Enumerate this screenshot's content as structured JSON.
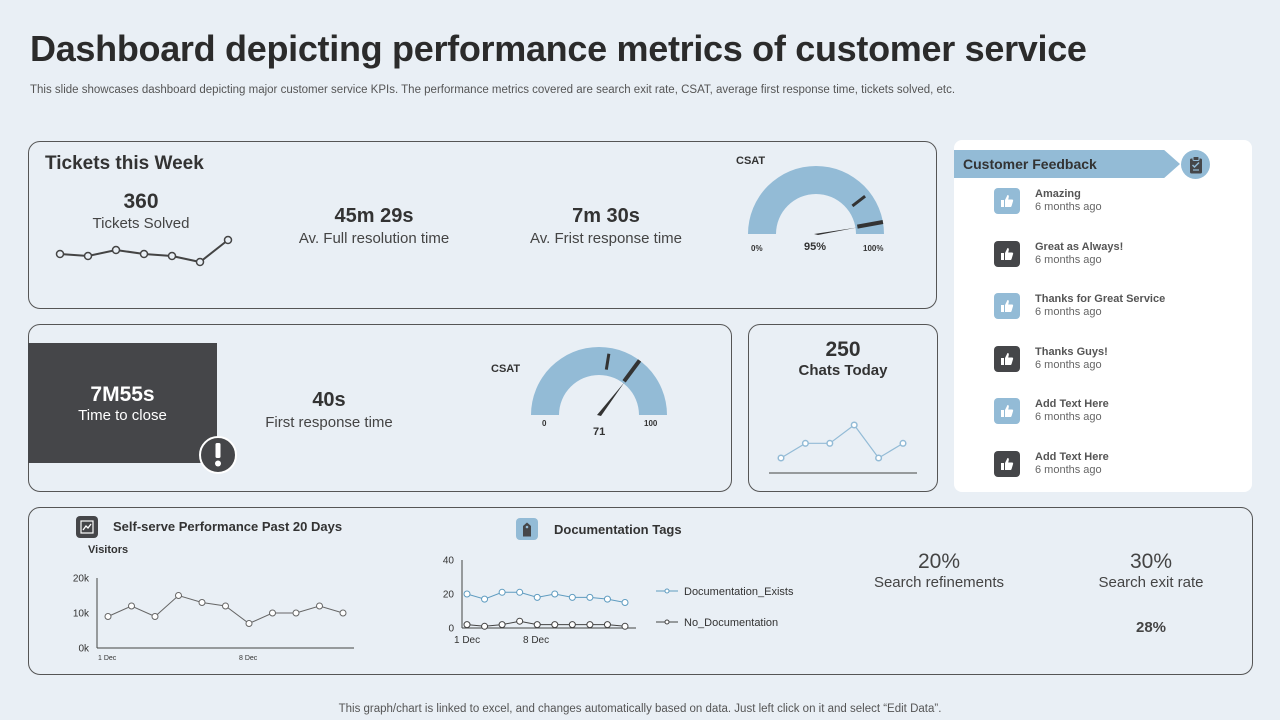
{
  "header": {
    "title": "Dashboard depicting performance metrics of customer service",
    "subtitle": "This slide showcases dashboard depicting major customer service KPIs. The performance metrics covered are search exit rate, CSAT,  average first response time, tickets solved, etc."
  },
  "tickets_week": {
    "heading": "Tickets this Week",
    "solved_value": "360",
    "solved_label": "Tickets Solved",
    "resolution_value": "45m 29s",
    "resolution_label": "Av. Full resolution time",
    "response_value": "7m 30s",
    "response_label": "Av. Frist response time",
    "sparkline": [
      6,
      5,
      8,
      6,
      5,
      2,
      13
    ],
    "csat": {
      "label": "CSAT",
      "min_label": "0%",
      "max_label": "100%",
      "value_label": "95%",
      "value": 95
    }
  },
  "close_panel": {
    "time_value": "7M55s",
    "time_label": "Time to close",
    "alert_icon": "exclamation-icon",
    "response_value": "40s",
    "response_label": "First response time",
    "csat": {
      "label": "CSAT",
      "min_label": "0",
      "max_label": "100",
      "value_label": "71",
      "value": 71
    }
  },
  "chats": {
    "value": "250",
    "label": "Chats Today",
    "sparkline": [
      3,
      7,
      7,
      12,
      3,
      7
    ]
  },
  "feedback": {
    "heading": "Customer Feedback",
    "header_icon": "clipboard-icon",
    "items": [
      {
        "title": "Amazing",
        "time": "6 months ago",
        "style": "light",
        "icon": "thumbs-up-icon"
      },
      {
        "title": "Great as Always!",
        "time": "6 months ago",
        "style": "dark",
        "icon": "thumbs-up-icon"
      },
      {
        "title": "Thanks for Great Service",
        "time": "6 months ago",
        "style": "light",
        "icon": "thumbs-up-icon"
      },
      {
        "title": "Thanks Guys!",
        "time": "6 months ago",
        "style": "dark",
        "icon": "thumbs-up-icon"
      },
      {
        "title": "Add Text Here",
        "time": "6 months ago",
        "style": "light",
        "icon": "thumbs-up-icon"
      },
      {
        "title": "Add Text Here",
        "time": "6 months ago",
        "style": "dark",
        "icon": "thumbs-up-icon"
      }
    ]
  },
  "self_serve": {
    "heading": "Self-serve Performance Past 20 Days",
    "icon": "chart-icon",
    "chart_label": "Visitors",
    "chart_data": {
      "type": "line",
      "series": [
        {
          "values": [
            9,
            12,
            9,
            15,
            13,
            12,
            7,
            10,
            10,
            12,
            10
          ]
        }
      ],
      "x_tick_labels": [
        "1 Dec",
        "8 Dec"
      ],
      "y_tick_labels": [
        "0k",
        "10k",
        "20k"
      ],
      "ylim": [
        0,
        20
      ]
    }
  },
  "doc_tags": {
    "heading": "Documentation Tags",
    "icon": "tag-icon",
    "chart_data": {
      "type": "line",
      "x_tick_labels": [
        "1 Dec",
        "8 Dec"
      ],
      "y_tick_labels": [
        "0",
        "20",
        "40"
      ],
      "ylim": [
        0,
        40
      ],
      "series": [
        {
          "name": "Documentation_Exists",
          "color": "#5f9cc0",
          "values": [
            20,
            17,
            21,
            21,
            18,
            20,
            18,
            18,
            17,
            15
          ]
        },
        {
          "name": "No_Documentation",
          "color": "#444444",
          "values": [
            2,
            1,
            2,
            4,
            2,
            2,
            2,
            2,
            2,
            1
          ]
        }
      ]
    }
  },
  "kpis": {
    "refinements_value": "20%",
    "refinements_label": "Search refinements",
    "exit_value": "30%",
    "exit_label": "Search exit rate",
    "extra_value": "28%"
  },
  "footer": "This graph/chart is linked to excel,  and changes automatically based on data. Just left click on it and select “Edit Data”.",
  "colors": {
    "accent": "#93bbd6",
    "dark": "#454649",
    "panel_border": "#555555",
    "background": "#e9eff5"
  }
}
